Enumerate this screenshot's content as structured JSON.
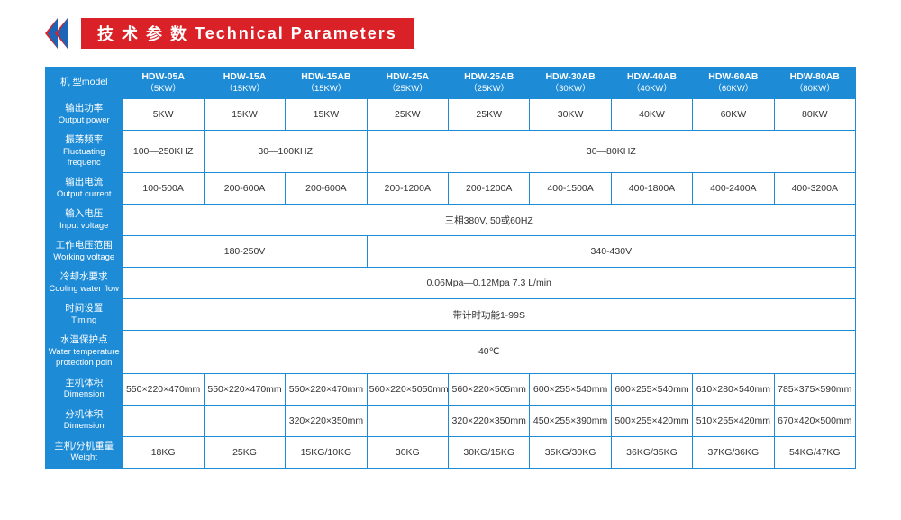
{
  "banner": {
    "cn": "技 术 参 数",
    "en": "Technical Parameters"
  },
  "headers": {
    "model": {
      "cn": "机  型model"
    },
    "cols": [
      {
        "name": "HDW-05A",
        "sub": "（5KW）"
      },
      {
        "name": "HDW-15A",
        "sub": "（15KW）"
      },
      {
        "name": "HDW-15AB",
        "sub": "（15KW）"
      },
      {
        "name": "HDW-25A",
        "sub": "（25KW）"
      },
      {
        "name": "HDW-25AB",
        "sub": "（25KW）"
      },
      {
        "name": "HDW-30AB",
        "sub": "（30KW）"
      },
      {
        "name": "HDW-40AB",
        "sub": "（40KW）"
      },
      {
        "name": "HDW-60AB",
        "sub": "（60KW）"
      },
      {
        "name": "HDW-80AB",
        "sub": "（80KW）"
      }
    ]
  },
  "rows": {
    "output_power": {
      "cn": "输出功率",
      "en": "Output power",
      "cells": [
        "5KW",
        "15KW",
        "15KW",
        "25KW",
        "25KW",
        "30KW",
        "40KW",
        "60KW",
        "80KW"
      ]
    },
    "fluct_freq": {
      "cn": "振荡频率",
      "en": "Fluctuating frequenc",
      "g1": "100—250KHZ",
      "g2": "30—100KHZ",
      "g3": "30—80KHZ"
    },
    "output_current": {
      "cn": "输出电流",
      "en": "Output current",
      "cells": [
        "100-500A",
        "200-600A",
        "200-600A",
        "200-1200A",
        "200-1200A",
        "400-1500A",
        "400-1800A",
        "400-2400A",
        "400-3200A"
      ]
    },
    "input_voltage": {
      "cn": "输入电压",
      "en": "Input voltage",
      "val": "三相380V, 50或60HZ"
    },
    "working_voltage": {
      "cn": "工作电压范围",
      "en": "Working voltage",
      "g1": "180-250V",
      "g2": "340-430V"
    },
    "cooling": {
      "cn": "冷却水要求",
      "en": "Cooling water flow",
      "val": "0.06Mpa—0.12Mpa  7.3 L/min"
    },
    "timing": {
      "cn": "时间设置",
      "en": "Timing",
      "val": "带计时功能1-99S"
    },
    "water_temp": {
      "cn": "水温保护点",
      "en": "Water temperature protection poin",
      "val": "40℃"
    },
    "dimension1": {
      "cn": "主机体积",
      "en": "Dimension",
      "cells": [
        "550×220×470mm",
        "550×220×470mm",
        "550×220×470mm",
        "560×220×5050mm",
        "560×220×505mm",
        "600×255×540mm",
        "600×255×540mm",
        "610×280×540mm",
        "785×375×590mm"
      ]
    },
    "dimension2": {
      "cn": "分机体积",
      "en": "Dimension",
      "cells": [
        "",
        "",
        "320×220×350mm",
        "",
        "320×220×350mm",
        "450×255×390mm",
        "500×255×420mm",
        "510×255×420mm",
        "670×420×500mm"
      ]
    },
    "weight": {
      "cn": "主机/分机重量",
      "en": "Weight",
      "cells": [
        "18KG",
        "25KG",
        "15KG/10KG",
        "30KG",
        "30KG/15KG",
        "35KG/30KG",
        "36KG/35KG",
        "37KG/36KG",
        "54KG/47KG"
      ]
    }
  }
}
